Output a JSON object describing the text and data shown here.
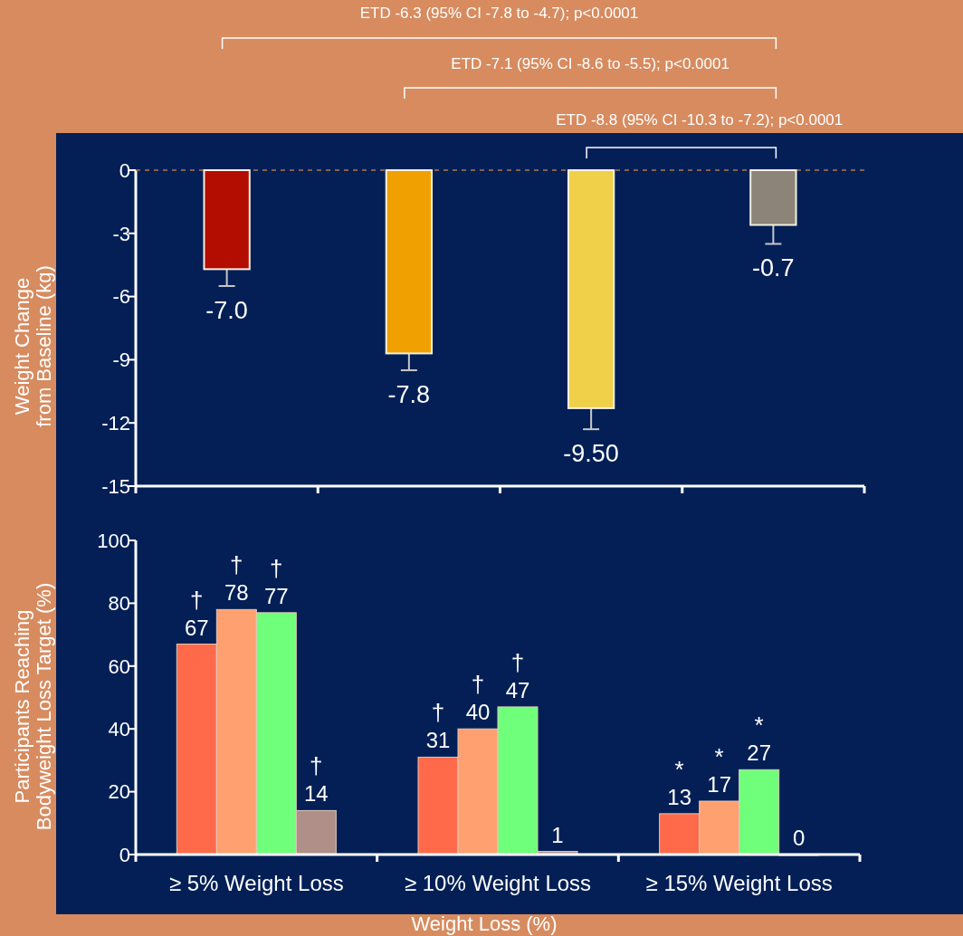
{
  "chart_data": [
    {
      "type": "bar",
      "categories": [
        null,
        null,
        null,
        null
      ],
      "values": [
        -4.7,
        -8.7,
        -11.3,
        -2.6
      ],
      "colors": [
        "#b30c00",
        "#f0a000",
        "#f0d048",
        "#8c8478"
      ],
      "errors": [
        [
          -5.5,
          -4.7
        ],
        [
          -9.5,
          -8.7
        ],
        [
          -12.3,
          -11.3
        ],
        [
          -3.5,
          -2.6
        ]
      ],
      "ylabel": "Weight Change from Baseline (kg)",
      "ylim": [
        -15,
        0
      ],
      "yticks": [
        0,
        -3,
        -6,
        -9,
        -12,
        -15
      ],
      "ref_lines": [
        {
          "axis": "y",
          "value": 0,
          "color": "#b07848",
          "line_style": "dashed"
        }
      ],
      "annotations": [
        "ETD -6.3 (95% CI -7.8 to -4.7); p<0.0001",
        "ETD -7.1 (95% CI -8.6 to -5.5); p<0.0001",
        "ETD -8.8 (95% CI -10.3 to -7.2); p<0.0001",
        {
          "text": "-7.0",
          "y": -5.5
        },
        {
          "text": "-7.8",
          "y": -9.5
        },
        {
          "text": "-9.50",
          "y": -12.3
        },
        {
          "text": "-0.7",
          "y": -3.5
        }
      ]
    },
    {
      "type": "bar",
      "categories": [
        "≥ 5% Weight Loss",
        "≥ 10% Weight Loss",
        "≥ 15% Weight Loss"
      ],
      "series": [
        {
          "color": "#ff6a4a",
          "values": [
            67,
            31,
            13
          ]
        },
        {
          "color": "#ffa070",
          "values": [
            78,
            40,
            17
          ]
        },
        {
          "color": "#70ff7a",
          "values": [
            77,
            47,
            27
          ]
        },
        {
          "color": "#b08f88",
          "values": [
            14,
            1,
            0
          ]
        }
      ],
      "data_labels": true,
      "xlabel": "Weight Loss (%)",
      "ylabel": "Participants Reaching Bodyweight Loss Target (%)",
      "ylim": [
        0,
        100
      ],
      "yticks": [
        0,
        20,
        40,
        60,
        80,
        100
      ],
      "annotations": [
        {
          "text": "†",
          "x": "≥ 5% Weight Loss",
          "y": 67
        },
        {
          "text": "†",
          "x": "≥ 5% Weight Loss",
          "y": 78
        },
        {
          "text": "†",
          "x": "≥ 5% Weight Loss",
          "y": 77
        },
        {
          "text": "†",
          "x": "≥ 5% Weight Loss",
          "y": 14
        },
        {
          "text": "†",
          "x": "≥ 10% Weight Loss",
          "y": 31
        },
        {
          "text": "†",
          "x": "≥ 10% Weight Loss",
          "y": 40
        },
        {
          "text": "†",
          "x": "≥ 10% Weight Loss",
          "y": 47
        },
        {
          "text": "*",
          "x": "≥ 15% Weight Loss",
          "y": 13
        },
        {
          "text": "*",
          "x": "≥ 15% Weight Loss",
          "y": 17
        },
        {
          "text": "*",
          "x": "≥ 15% Weight Loss",
          "y": 27
        }
      ]
    }
  ]
}
